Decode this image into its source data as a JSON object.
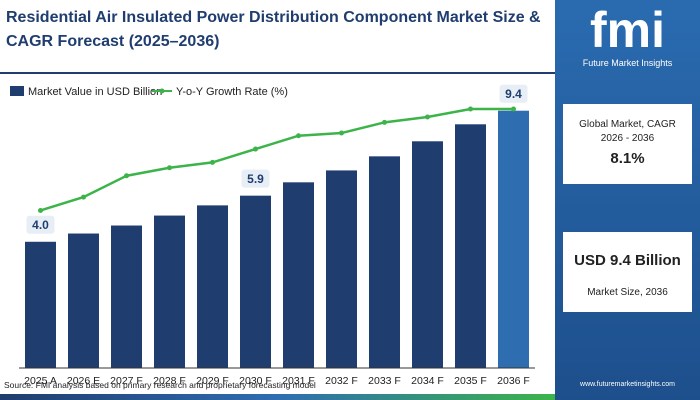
{
  "header": {
    "title": "Residential Air Insulated Power Distribution Component Market Size & CAGR Forecast (2025–2036)"
  },
  "chart_data": {
    "type": "bar",
    "categories": [
      "2025 A",
      "2026 E",
      "2027 F",
      "2028 F",
      "2029 F",
      "2030 F",
      "2031 F",
      "2032 F",
      "2033 F",
      "2034 F",
      "2035 F",
      "2036 F"
    ],
    "series": [
      {
        "name": "Market Value in USD Billion",
        "color": "#1f3d6e",
        "highlight_color": "#2f6db1",
        "values": [
          4.0,
          4.34,
          4.67,
          5.08,
          5.5,
          5.9,
          6.45,
          6.94,
          7.52,
          8.14,
          8.84,
          9.4
        ],
        "value_labels": [
          "4.0",
          null,
          null,
          null,
          null,
          "5.9",
          null,
          null,
          null,
          null,
          null,
          "9.4"
        ]
      },
      {
        "name": "Y-o-Y Growth Rate (%)",
        "color": "#3cb44a",
        "axis": "y2",
        "values": [
          59,
          64,
          72,
          75,
          77,
          82,
          87,
          88,
          92,
          94,
          97,
          97
        ]
      }
    ],
    "ylim": [
      -1.2,
      9.8
    ],
    "y2lim": [
      0,
      100
    ],
    "legend": "top-left"
  },
  "sidebar": {
    "brand": "fmi",
    "brand_sub": "Future Market Insights",
    "cagr_label": "Global Market, CAGR 2026 - 2036",
    "cagr_value": "8.1%",
    "size_value": "USD 9.4 Billion",
    "size_label": "Market Size, 2036",
    "website": "www.futuremarketinsights.com"
  },
  "source": "Source: FMI analysis based on primary research and proprietary forecasting model"
}
